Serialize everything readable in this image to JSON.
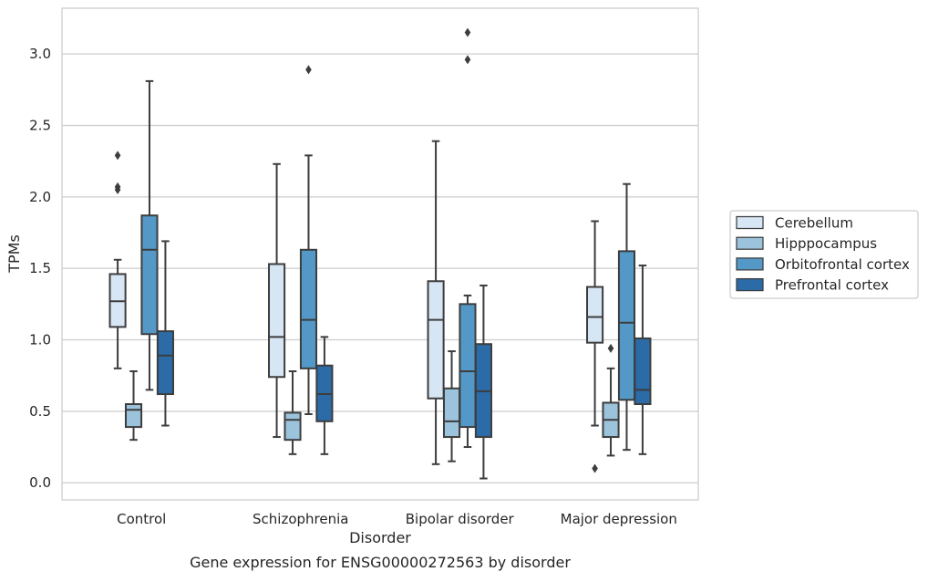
{
  "caption": "Gene expression for ENSG00000272563 by disorder",
  "chart_data": {
    "type": "box",
    "xlabel": "Disorder",
    "ylabel": "TPMs",
    "ylim": [
      -0.12,
      3.32
    ],
    "yticks": [
      "0.0",
      "0.5",
      "1.0",
      "1.5",
      "2.0",
      "2.5",
      "3.0"
    ],
    "grid": true,
    "legend_position": "right",
    "categories": [
      "Control",
      "Schizophrenia",
      "Bipolar disorder",
      "Major depression"
    ],
    "series": [
      {
        "name": "Cerebellum",
        "color": "#d7e6f4",
        "boxes": [
          {
            "whislo": 0.8,
            "q1": 1.09,
            "med": 1.27,
            "q3": 1.46,
            "whishi": 1.56,
            "fliers": [
              2.05,
              2.07,
              2.29
            ]
          },
          {
            "whislo": 0.32,
            "q1": 0.74,
            "med": 1.02,
            "q3": 1.53,
            "whishi": 2.23,
            "fliers": []
          },
          {
            "whislo": 0.13,
            "q1": 0.59,
            "med": 1.14,
            "q3": 1.41,
            "whishi": 2.39,
            "fliers": []
          },
          {
            "whislo": 0.4,
            "q1": 0.98,
            "med": 1.16,
            "q3": 1.37,
            "whishi": 1.83,
            "fliers": [
              0.1
            ]
          }
        ]
      },
      {
        "name": "Hipppocampus",
        "color": "#9cc3dc",
        "boxes": [
          {
            "whislo": 0.3,
            "q1": 0.39,
            "med": 0.51,
            "q3": 0.55,
            "whishi": 0.78,
            "fliers": []
          },
          {
            "whislo": 0.2,
            "q1": 0.3,
            "med": 0.44,
            "q3": 0.49,
            "whishi": 0.78,
            "fliers": []
          },
          {
            "whislo": 0.15,
            "q1": 0.32,
            "med": 0.43,
            "q3": 0.66,
            "whishi": 0.92,
            "fliers": []
          },
          {
            "whislo": 0.19,
            "q1": 0.32,
            "med": 0.44,
            "q3": 0.56,
            "whishi": 0.8,
            "fliers": [
              0.94
            ]
          }
        ]
      },
      {
        "name": "Orbitofrontal cortex",
        "color": "#5498c8",
        "boxes": [
          {
            "whislo": 0.65,
            "q1": 1.04,
            "med": 1.63,
            "q3": 1.87,
            "whishi": 2.81,
            "fliers": []
          },
          {
            "whislo": 0.48,
            "q1": 0.8,
            "med": 1.14,
            "q3": 1.63,
            "whishi": 2.29,
            "fliers": [
              2.89
            ]
          },
          {
            "whislo": 0.25,
            "q1": 0.39,
            "med": 0.78,
            "q3": 1.25,
            "whishi": 1.31,
            "fliers": [
              2.96,
              3.15
            ]
          },
          {
            "whislo": 0.23,
            "q1": 0.58,
            "med": 1.12,
            "q3": 1.62,
            "whishi": 2.09,
            "fliers": []
          }
        ]
      },
      {
        "name": "Prefrontal cortex",
        "color": "#2b6ba8",
        "boxes": [
          {
            "whislo": 0.4,
            "q1": 0.62,
            "med": 0.89,
            "q3": 1.06,
            "whishi": 1.69,
            "fliers": []
          },
          {
            "whislo": 0.2,
            "q1": 0.43,
            "med": 0.62,
            "q3": 0.82,
            "whishi": 1.02,
            "fliers": []
          },
          {
            "whislo": 0.03,
            "q1": 0.32,
            "med": 0.64,
            "q3": 0.97,
            "whishi": 1.38,
            "fliers": []
          },
          {
            "whislo": 0.2,
            "q1": 0.55,
            "med": 0.65,
            "q3": 1.01,
            "whishi": 1.52,
            "fliers": []
          }
        ]
      }
    ]
  }
}
